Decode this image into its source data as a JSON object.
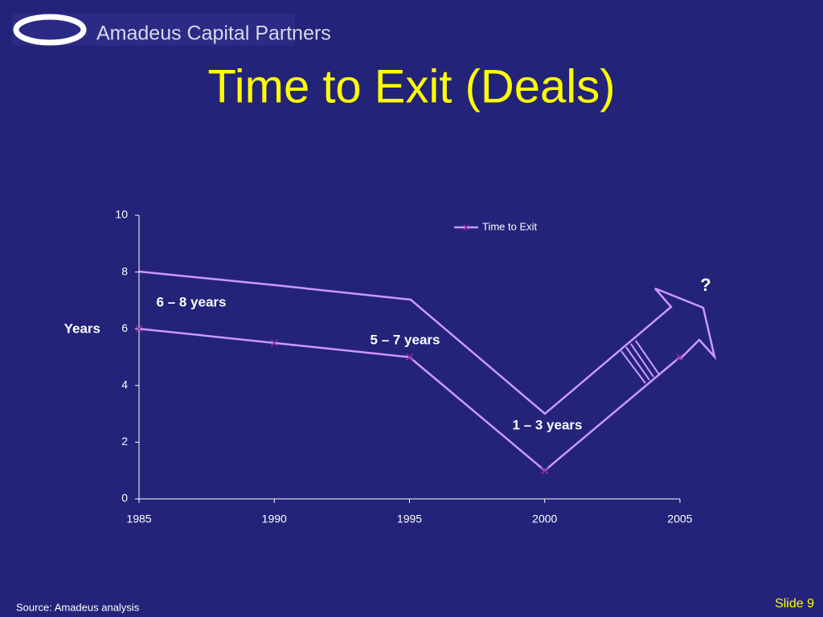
{
  "header": {
    "logo_text": "Amadeus Capital Partners"
  },
  "chart_data": {
    "type": "line",
    "title": "Time to Exit (Deals)",
    "y_label": "Years",
    "x": [
      1985,
      1990,
      1995,
      2000,
      2005
    ],
    "xlim": [
      1985,
      2005
    ],
    "xticks": [
      1985,
      1990,
      1995,
      2000,
      2005
    ],
    "ylim": [
      0,
      10
    ],
    "yticks": [
      0,
      2,
      4,
      6,
      8,
      10
    ],
    "series": [
      {
        "name": "Time to Exit",
        "color": "#cc99ff",
        "marker_color": "#993399",
        "values": [
          6,
          5.5,
          5,
          1,
          5
        ]
      }
    ],
    "annotations": [
      "6 – 8 years",
      "5 – 7 years",
      "1 – 3 years",
      "?"
    ],
    "legend": "top"
  },
  "footer": {
    "source": "Source: Amadeus analysis",
    "slide": "Slide 9"
  }
}
